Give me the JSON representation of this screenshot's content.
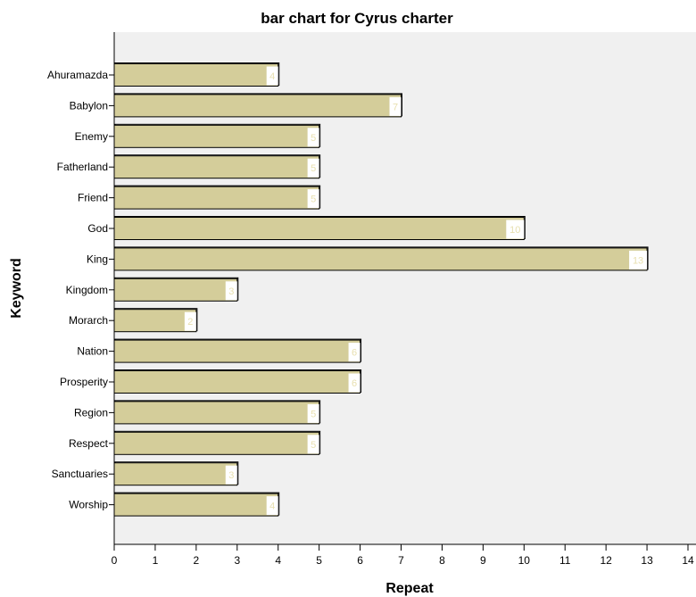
{
  "chart_data": {
    "type": "bar",
    "orientation": "horizontal",
    "title": "bar chart for Cyrus charter",
    "xlabel": "Repeat",
    "ylabel": "Keyword",
    "categories": [
      "Ahuramazda",
      "Babylon",
      "Enemy",
      "Fatherland",
      "Friend",
      "God",
      "King",
      "Kingdom",
      "Morarch",
      "Nation",
      "Prosperity",
      "Region",
      "Respect",
      "Sanctuaries",
      "Worship"
    ],
    "values": [
      4,
      7,
      5,
      5,
      5,
      10,
      13,
      3,
      2,
      6,
      6,
      5,
      5,
      3,
      4
    ],
    "data_labels": [
      "4",
      "7",
      "5",
      "5",
      "5",
      "10",
      "13",
      "3",
      "2",
      "6",
      "6",
      "5",
      "5",
      "3",
      "4"
    ],
    "xlim": [
      0,
      14
    ],
    "x_ticks": [
      "0",
      "1",
      "2",
      "3",
      "4",
      "5",
      "6",
      "7",
      "8",
      "9",
      "10",
      "11",
      "12",
      "13",
      "14"
    ],
    "grid": false,
    "colors": {
      "bar": "#d4cd9a",
      "plot_background": "#f0f0f0",
      "data_label": "#e8e0b0",
      "bar_outline": "#000000"
    }
  }
}
